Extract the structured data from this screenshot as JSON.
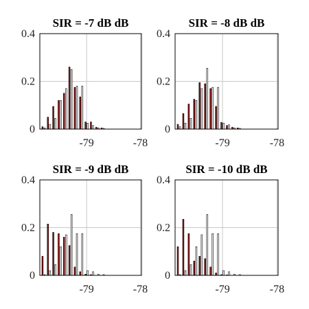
{
  "chart_data": [
    {
      "type": "bar",
      "title": "SIR = -7 dB dB",
      "ylim": [
        0,
        0.4
      ],
      "yticks": [
        "0",
        "0.2",
        "0.4"
      ],
      "xlim": [
        -79.87,
        -77.98
      ],
      "xticks": [
        {
          "value": -79,
          "label": "-79"
        },
        {
          "value": -78,
          "label": "-78"
        }
      ],
      "grid": true,
      "x": [
        -79.8,
        -79.7,
        -79.6,
        -79.5,
        -79.4,
        -79.3,
        -79.2,
        -79.1,
        -79.0,
        -78.9,
        -78.8,
        -78.7,
        -78.6,
        -78.5,
        -78.4,
        -78.3,
        -78.2,
        -78.1
      ],
      "series": [
        {
          "color": "#9b1212",
          "values": [
            0.01,
            0.05,
            0.095,
            0.12,
            0.15,
            0.26,
            0.175,
            0.135,
            0.03,
            0.03,
            0.008,
            0.005,
            0,
            0,
            0,
            0,
            0,
            0
          ]
        },
        {
          "color": "#ffffff",
          "values": [
            0.005,
            0.02,
            0.045,
            0.12,
            0.17,
            0.25,
            0.18,
            0.18,
            0.025,
            0.015,
            0.005,
            0.003,
            0,
            0,
            0,
            0,
            0,
            0
          ]
        }
      ]
    },
    {
      "type": "bar",
      "title": "SIR = -8 dB dB",
      "ylim": [
        0,
        0.4
      ],
      "yticks": [
        "0",
        "0.2",
        "0.4"
      ],
      "xlim": [
        -79.87,
        -77.98
      ],
      "xticks": [
        {
          "value": -79,
          "label": "-79"
        },
        {
          "value": -78,
          "label": "-78"
        }
      ],
      "grid": true,
      "x": [
        -79.8,
        -79.7,
        -79.6,
        -79.5,
        -79.4,
        -79.3,
        -79.2,
        -79.1,
        -79.0,
        -78.9,
        -78.8,
        -78.7,
        -78.6,
        -78.5,
        -78.4,
        -78.3,
        -78.2,
        -78.1
      ],
      "series": [
        {
          "color": "#9b1212",
          "values": [
            0.02,
            0.065,
            0.105,
            0.125,
            0.195,
            0.19,
            0.17,
            0.095,
            0.028,
            0.015,
            0.008,
            0.005,
            0,
            0,
            0,
            0,
            0,
            0
          ]
        },
        {
          "color": "#ffffff",
          "values": [
            0.01,
            0.025,
            0.045,
            0.12,
            0.17,
            0.255,
            0.175,
            0.175,
            0.025,
            0.018,
            0.005,
            0.003,
            0,
            0,
            0,
            0,
            0,
            0
          ]
        }
      ]
    },
    {
      "type": "bar",
      "title": "SIR = -9 dB dB",
      "ylim": [
        0,
        0.4
      ],
      "yticks": [
        "0",
        "0.2",
        "0.4"
      ],
      "xlim": [
        -79.87,
        -77.98
      ],
      "xticks": [
        {
          "value": -79,
          "label": "-79"
        },
        {
          "value": -78,
          "label": "-78"
        }
      ],
      "grid": true,
      "x": [
        -79.8,
        -79.7,
        -79.6,
        -79.5,
        -79.4,
        -79.3,
        -79.2,
        -79.1,
        -79.0,
        -78.9,
        -78.8,
        -78.7,
        -78.6,
        -78.5,
        -78.4,
        -78.3,
        -78.2,
        -78.1
      ],
      "series": [
        {
          "color": "#9b1212",
          "values": [
            0.08,
            0.215,
            0.18,
            0.175,
            0.16,
            0.125,
            0.035,
            0.015,
            0.005,
            0.003,
            0,
            0,
            0,
            0,
            0,
            0,
            0,
            0
          ]
        },
        {
          "color": "#ffffff",
          "values": [
            0.003,
            0.02,
            0.045,
            0.12,
            0.17,
            0.255,
            0.175,
            0.175,
            0.02,
            0.015,
            0.005,
            0.003,
            0,
            0,
            0,
            0,
            0,
            0
          ]
        }
      ]
    },
    {
      "type": "bar",
      "title": "SIR = -10 dB dB",
      "ylim": [
        0,
        0.4
      ],
      "yticks": [
        "0",
        "0.2",
        "0.4"
      ],
      "xlim": [
        -79.87,
        -77.98
      ],
      "xticks": [
        {
          "value": -79,
          "label": "-79"
        },
        {
          "value": -78,
          "label": "-78"
        }
      ],
      "grid": true,
      "x": [
        -79.8,
        -79.7,
        -79.6,
        -79.5,
        -79.4,
        -79.3,
        -79.2,
        -79.1,
        -79.0,
        -78.9,
        -78.8,
        -78.7,
        -78.6,
        -78.5,
        -78.4,
        -78.3,
        -78.2,
        -78.1
      ],
      "series": [
        {
          "color": "#9b1212",
          "values": [
            0.12,
            0.235,
            0.175,
            0.06,
            0.08,
            0.07,
            0.035,
            0.01,
            0.003,
            0.002,
            0,
            0,
            0,
            0,
            0,
            0,
            0,
            0
          ]
        },
        {
          "color": "#ffffff",
          "values": [
            0.003,
            0.02,
            0.045,
            0.12,
            0.17,
            0.255,
            0.175,
            0.175,
            0.02,
            0.015,
            0.005,
            0.003,
            0,
            0,
            0,
            0,
            0,
            0
          ]
        }
      ]
    }
  ]
}
